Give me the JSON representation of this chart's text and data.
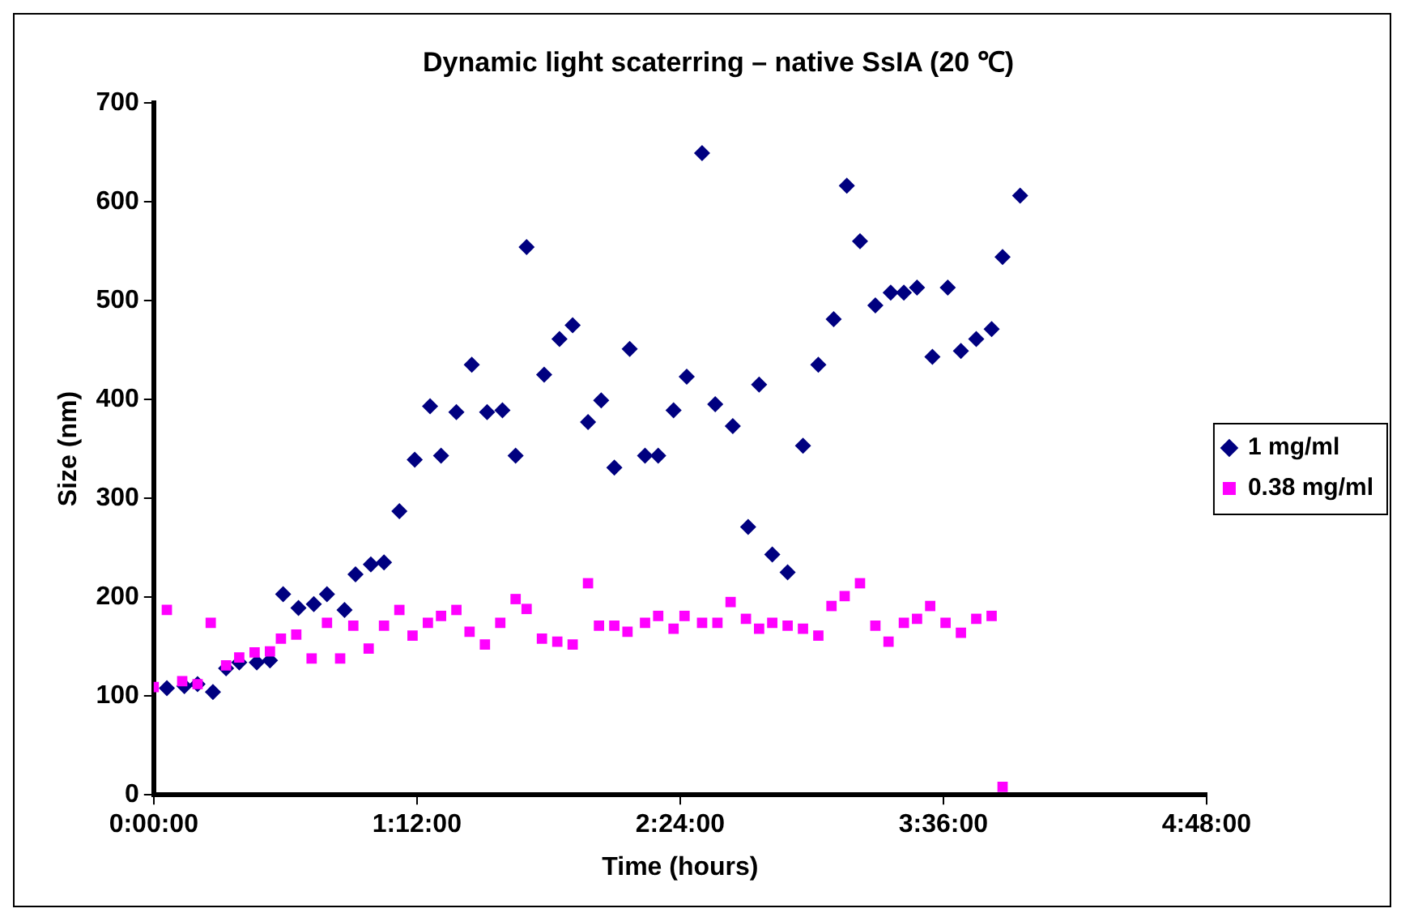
{
  "chart_data": {
    "type": "scatter",
    "title": "Dynamic light scaterring – native SsIA (20 ℃)",
    "xlabel": "Time (hours)",
    "ylabel": "Size (nm)",
    "xlim": [
      0,
      4.8
    ],
    "xticks": [
      {
        "value": 0,
        "label": "0:00:00"
      },
      {
        "value": 1.2,
        "label": "1:12:00"
      },
      {
        "value": 2.4,
        "label": "2:24:00"
      },
      {
        "value": 3.6,
        "label": "3:36:00"
      },
      {
        "value": 4.8,
        "label": "4:48:00"
      }
    ],
    "ylim": [
      0,
      700
    ],
    "yticks": [
      0,
      100,
      200,
      300,
      400,
      500,
      600,
      700
    ],
    "grid": false,
    "legend": "right",
    "series": [
      {
        "name": "1 mg/ml",
        "color": "#000080",
        "marker": "diamond",
        "x": [
          0.06,
          0.14,
          0.2,
          0.27,
          0.33,
          0.39,
          0.47,
          0.53,
          0.59,
          0.66,
          0.73,
          0.79,
          0.87,
          0.92,
          0.99,
          1.05,
          1.12,
          1.19,
          1.26,
          1.31,
          1.38,
          1.45,
          1.52,
          1.59,
          1.65,
          1.7,
          1.78,
          1.85,
          1.91,
          1.98,
          2.04,
          2.1,
          2.17,
          2.24,
          2.3,
          2.37,
          2.43,
          2.5,
          2.56,
          2.64,
          2.71,
          2.76,
          2.82,
          2.89,
          2.96,
          3.03,
          3.1,
          3.16,
          3.22,
          3.29,
          3.36,
          3.42,
          3.48,
          3.55,
          3.62,
          3.68,
          3.75,
          3.82,
          3.87,
          3.95
        ],
        "values": [
          108,
          110,
          112,
          104,
          128,
          134,
          134,
          136,
          203,
          189,
          193,
          203,
          187,
          223,
          233,
          235,
          287,
          339,
          393,
          343,
          387,
          435,
          387,
          389,
          343,
          554,
          425,
          461,
          475,
          377,
          399,
          331,
          451,
          343,
          343,
          389,
          423,
          649,
          395,
          373,
          271,
          415,
          243,
          225,
          353,
          435,
          481,
          616,
          560,
          495,
          508,
          508,
          513,
          443,
          513,
          449,
          461,
          471,
          544,
          606
        ]
      },
      {
        "name": "0.38 mg/ml",
        "color": "#ff00ff",
        "marker": "square",
        "x": [
          0,
          0.06,
          0.13,
          0.2,
          0.26,
          0.33,
          0.39,
          0.46,
          0.53,
          0.58,
          0.65,
          0.72,
          0.79,
          0.85,
          0.91,
          0.98,
          1.05,
          1.12,
          1.18,
          1.25,
          1.31,
          1.38,
          1.44,
          1.51,
          1.58,
          1.65,
          1.7,
          1.77,
          1.84,
          1.91,
          1.98,
          2.03,
          2.1,
          2.16,
          2.24,
          2.3,
          2.37,
          2.42,
          2.5,
          2.57,
          2.63,
          2.7,
          2.76,
          2.82,
          2.89,
          2.96,
          3.03,
          3.09,
          3.15,
          3.22,
          3.29,
          3.35,
          3.42,
          3.48,
          3.54,
          3.61,
          3.68,
          3.75,
          3.82,
          3.87
        ],
        "values": [
          109,
          187,
          115,
          112,
          174,
          131,
          139,
          144,
          145,
          158,
          162,
          138,
          174,
          138,
          171,
          148,
          171,
          187,
          161,
          174,
          181,
          187,
          165,
          152,
          174,
          198,
          188,
          158,
          155,
          152,
          214,
          171,
          171,
          165,
          174,
          181,
          168,
          181,
          174,
          174,
          195,
          178,
          168,
          174,
          171,
          168,
          161,
          191,
          201,
          214,
          171,
          155,
          174,
          178,
          191,
          174,
          164,
          178,
          181,
          8
        ]
      }
    ]
  }
}
